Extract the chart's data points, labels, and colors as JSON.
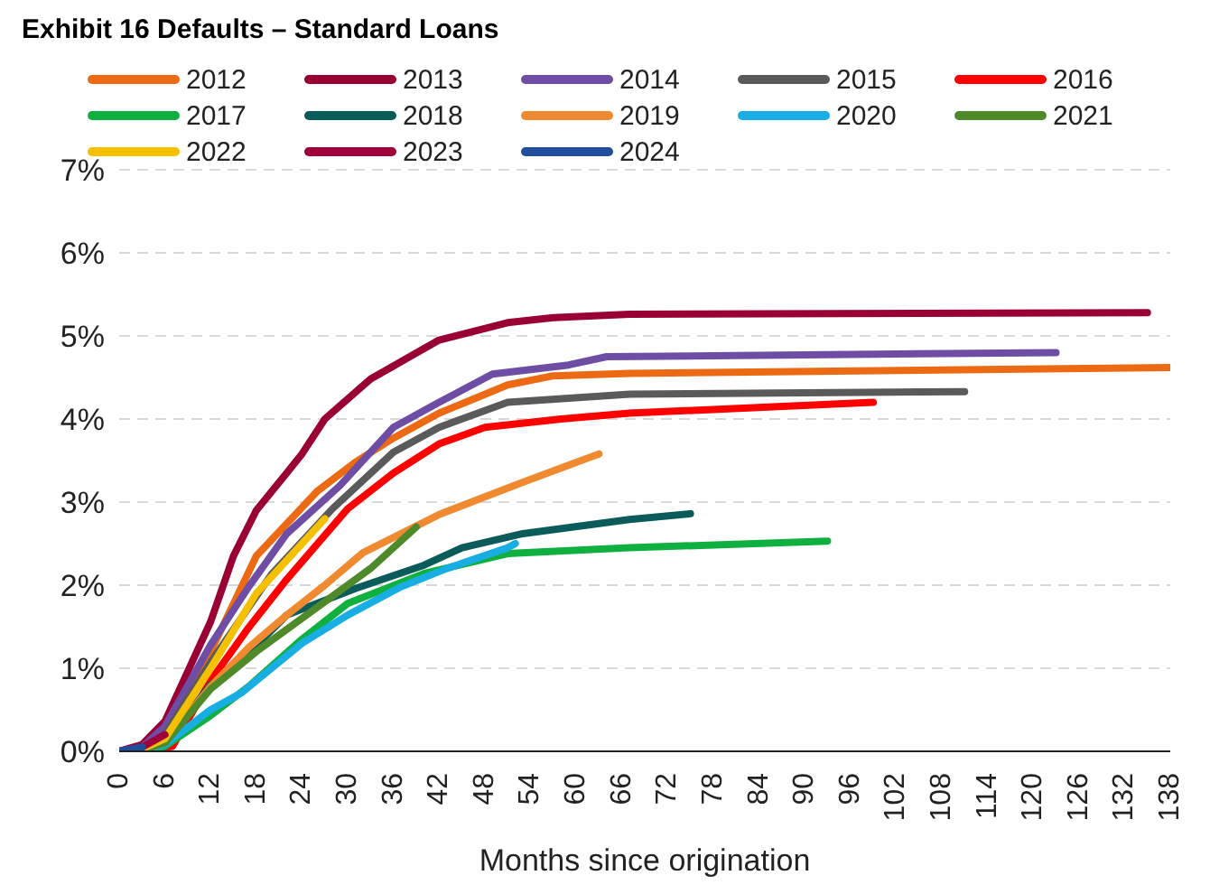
{
  "chart_data": {
    "type": "line",
    "title": "Exhibit 16 Defaults – Standard Loans",
    "xlabel": "Months since origination",
    "xlim": [
      0,
      138
    ],
    "xticks": [
      0,
      6,
      12,
      18,
      24,
      30,
      36,
      42,
      48,
      54,
      60,
      66,
      72,
      78,
      84,
      90,
      96,
      102,
      108,
      114,
      120,
      126,
      132,
      138
    ],
    "ylim": [
      0,
      7
    ],
    "yticks": [
      {
        "value": 0,
        "label": "0%"
      },
      {
        "value": 1,
        "label": "1%"
      },
      {
        "value": 2,
        "label": "2%"
      },
      {
        "value": 3,
        "label": "3%"
      },
      {
        "value": 4,
        "label": "4%"
      },
      {
        "value": 5,
        "label": "5%"
      },
      {
        "value": 6,
        "label": "6%"
      },
      {
        "value": 7,
        "label": "7%"
      }
    ],
    "grid": "y",
    "legend": "top",
    "marker": "none",
    "line_style": "solid",
    "series": [
      {
        "name": "2024",
        "color": "#1f4e9c",
        "x": [
          0,
          3
        ],
        "values": [
          0,
          0.05
        ]
      },
      {
        "name": "2023",
        "color": "#a0003a",
        "x": [
          0,
          3,
          6
        ],
        "values": [
          0,
          0.05,
          0.2
        ]
      },
      {
        "name": "2022",
        "color": "#f5c000",
        "x": [
          0,
          3,
          6,
          12,
          18,
          24,
          27
        ],
        "values": [
          0,
          0.03,
          0.15,
          1.0,
          1.9,
          2.5,
          2.8
        ]
      },
      {
        "name": "2021",
        "color": "#4f8a2a",
        "x": [
          0,
          3,
          6,
          12,
          18,
          24,
          33,
          39
        ],
        "values": [
          0,
          0.02,
          0.1,
          0.75,
          1.2,
          1.6,
          2.2,
          2.7
        ]
      },
      {
        "name": "2020",
        "color": "#19aee3",
        "x": [
          0,
          3,
          6,
          12,
          16,
          24,
          30,
          37,
          43,
          51,
          52
        ],
        "values": [
          0,
          0.02,
          0.08,
          0.5,
          0.7,
          1.3,
          1.64,
          1.98,
          2.2,
          2.45,
          2.5
        ]
      },
      {
        "name": "2019",
        "color": "#f08a30",
        "x": [
          0,
          3,
          6,
          12,
          17,
          22,
          27,
          32,
          42,
          53,
          63
        ],
        "values": [
          0,
          0.02,
          0.1,
          0.78,
          1.25,
          1.64,
          2.0,
          2.39,
          2.85,
          3.24,
          3.58
        ]
      },
      {
        "name": "2018",
        "color": "#0b5b5b",
        "x": [
          0,
          3,
          6,
          12,
          15,
          22,
          31,
          40,
          45,
          53,
          67,
          75
        ],
        "values": [
          0,
          0.02,
          0.1,
          0.8,
          1.0,
          1.64,
          1.96,
          2.24,
          2.45,
          2.62,
          2.79,
          2.86
        ]
      },
      {
        "name": "2017",
        "color": "#10b040",
        "x": [
          0,
          3,
          6,
          12,
          17,
          24,
          30,
          40,
          51,
          67,
          93
        ],
        "values": [
          0,
          0.01,
          0.06,
          0.43,
          0.78,
          1.35,
          1.78,
          2.14,
          2.38,
          2.45,
          2.53
        ]
      },
      {
        "name": "2016",
        "color": "#ff0000",
        "x": [
          0,
          3,
          7,
          12,
          17,
          22,
          30,
          36,
          42,
          48,
          58,
          67,
          99
        ],
        "values": [
          0,
          0.01,
          0.06,
          0.85,
          1.49,
          2.07,
          2.92,
          3.35,
          3.7,
          3.9,
          4.0,
          4.07,
          4.2
        ]
      },
      {
        "name": "2015",
        "color": "#5a5a5a",
        "x": [
          0,
          3,
          6,
          12,
          20,
          28,
          36,
          42,
          51,
          67,
          111
        ],
        "values": [
          0,
          0.03,
          0.2,
          1.07,
          2.13,
          2.92,
          3.6,
          3.9,
          4.2,
          4.3,
          4.33
        ]
      },
      {
        "name": "2014",
        "color": "#6e4ea4",
        "x": [
          0,
          3,
          6,
          12,
          17,
          22,
          29,
          36,
          42,
          49,
          59,
          64,
          123
        ],
        "values": [
          0,
          0.05,
          0.3,
          1.28,
          1.98,
          2.62,
          3.2,
          3.9,
          4.2,
          4.54,
          4.65,
          4.75,
          4.8
        ]
      },
      {
        "name": "2013",
        "color": "#990033",
        "x": [
          0,
          3,
          6,
          12,
          15,
          18,
          22,
          24,
          27,
          33,
          42,
          51,
          57,
          67,
          135
        ],
        "values": [
          0,
          0.08,
          0.36,
          1.56,
          2.35,
          2.9,
          3.35,
          3.58,
          4.0,
          4.48,
          4.95,
          5.16,
          5.22,
          5.26,
          5.28
        ]
      },
      {
        "name": "2012",
        "color": "#ec6a14",
        "x": [
          0,
          3,
          6,
          12,
          18,
          26,
          31,
          36,
          42,
          51,
          57,
          67,
          138
        ],
        "values": [
          0,
          0.02,
          0.12,
          1.2,
          2.35,
          3.13,
          3.48,
          3.77,
          4.07,
          4.41,
          4.52,
          4.55,
          4.62
        ]
      }
    ]
  }
}
